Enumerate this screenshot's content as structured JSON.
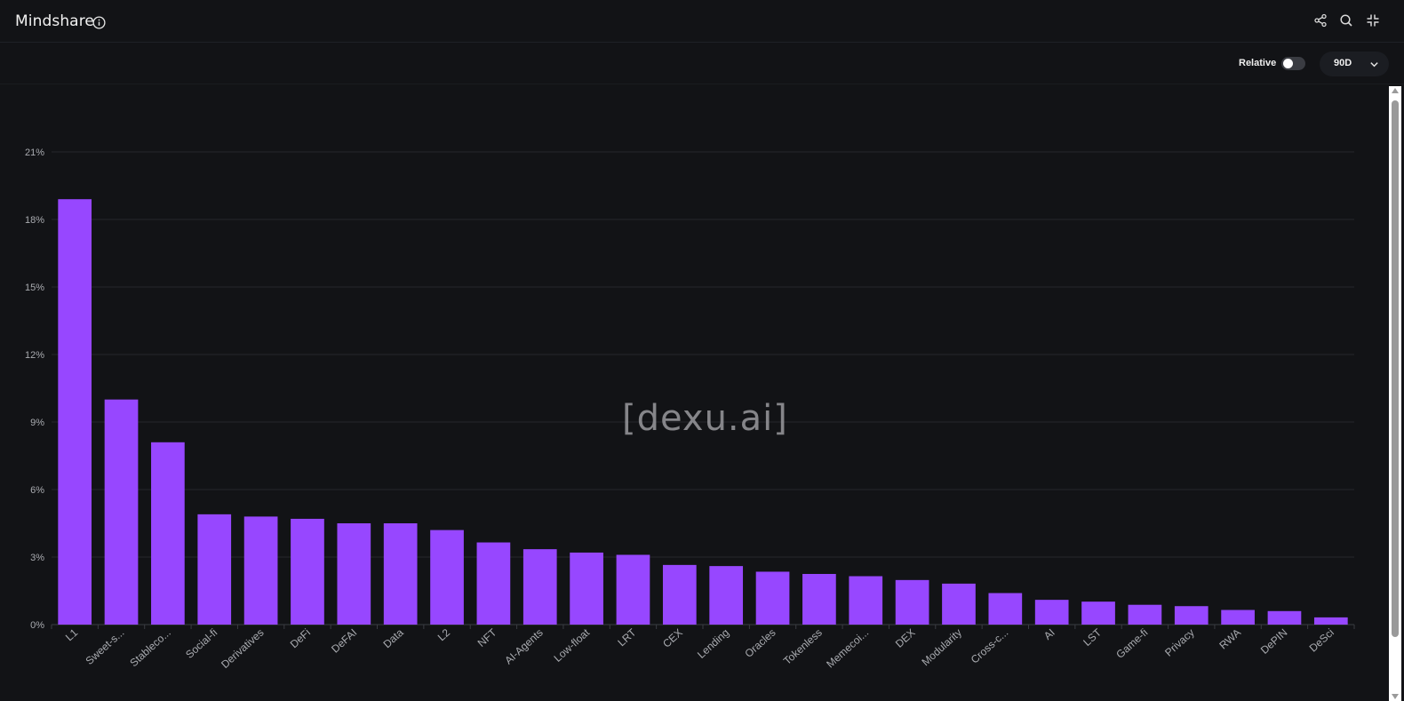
{
  "header": {
    "title": "Mindshare",
    "icons": [
      "info-icon",
      "share-icon",
      "search-icon",
      "collapse-icon"
    ]
  },
  "toolbar": {
    "relative_label": "Relative",
    "relative_enabled": false,
    "range_value": "90D"
  },
  "watermark": "[dexu.ai]",
  "colors": {
    "background": "#121316",
    "bar": "#9747ff",
    "grid": "#25272c",
    "tick_text": "#a9abb0"
  },
  "chart_data": {
    "type": "bar",
    "title": "",
    "xlabel": "",
    "ylabel": "",
    "ylim": [
      0,
      21
    ],
    "yticks": [
      0,
      3,
      6,
      9,
      12,
      15,
      18,
      21
    ],
    "ytick_labels": [
      "0%",
      "3%",
      "6%",
      "9%",
      "12%",
      "15%",
      "18%",
      "21%"
    ],
    "grid": true,
    "legend": "none",
    "categories": [
      "L1",
      "Sweet-s...",
      "Stableco...",
      "Social-fi",
      "Derivatives",
      "DeFi",
      "DeFAI",
      "Data",
      "L2",
      "NFT",
      "AI-Agents",
      "Low-float",
      "LRT",
      "CEX",
      "Lending",
      "Oracles",
      "Tokenless",
      "Memecoi...",
      "DEX",
      "Modularity",
      "Cross-c...",
      "AI",
      "LST",
      "Game-fi",
      "Privacy",
      "RWA",
      "DePIN",
      "DeSci"
    ],
    "values": [
      18.9,
      10.0,
      8.1,
      4.9,
      4.8,
      4.7,
      4.5,
      4.5,
      4.2,
      3.65,
      3.35,
      3.2,
      3.1,
      2.65,
      2.6,
      2.35,
      2.25,
      2.15,
      1.98,
      1.82,
      1.4,
      1.1,
      1.02,
      0.88,
      0.82,
      0.65,
      0.6,
      0.32
    ],
    "units": "%"
  }
}
